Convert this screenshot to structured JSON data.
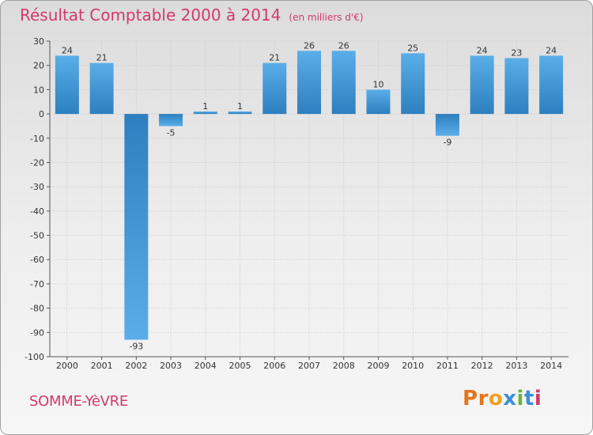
{
  "header": {
    "title": "Résultat Comptable 2000 à 2014",
    "subtitle": "(en milliers d'€)"
  },
  "footer": {
    "commune": "SOMME-YèVRE",
    "logo_letters": [
      "P",
      "r",
      "o",
      "x",
      "i",
      "t",
      "i"
    ]
  },
  "colors": {
    "title": "#d03a6c",
    "bar_dark": "#2d7fbf",
    "bar_light": "#5aaee8",
    "logo": [
      "#e8731a",
      "#e8731a",
      "#f0a020",
      "#3a8ed8",
      "#6cb43a",
      "#3a8ed8",
      "#d03a6c"
    ]
  },
  "chart_data": {
    "type": "bar",
    "title": "Résultat Comptable 2000 à 2014",
    "subtitle": "(en milliers d'€)",
    "categories": [
      "2000",
      "2001",
      "2002",
      "2003",
      "2004",
      "2005",
      "2006",
      "2007",
      "2008",
      "2009",
      "2010",
      "2011",
      "2012",
      "2013",
      "2014"
    ],
    "values": [
      24,
      21,
      -93,
      -5,
      1,
      1,
      21,
      26,
      26,
      10,
      25,
      -9,
      24,
      23,
      24
    ],
    "ylim": [
      -100,
      30
    ],
    "yticks": [
      30,
      20,
      10,
      0,
      -10,
      -20,
      -30,
      -40,
      -50,
      -60,
      -70,
      -80,
      -90,
      -100
    ],
    "grid": true,
    "xlabel": "",
    "ylabel": ""
  }
}
